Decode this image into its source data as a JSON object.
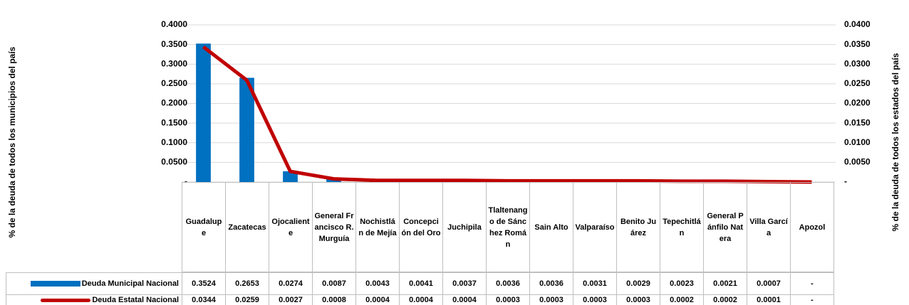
{
  "chart_data": {
    "type": "bar",
    "y_label": "% de la deuda  de todos los municipios del país",
    "y2_label": "% de la deuda de todos los estados del país",
    "categories": [
      "Guadalupe",
      "Zacatecas",
      "Ojocaliente",
      "General Francisco R. Murguía",
      "Nochistlán de Mejía",
      "Concepción del Oro",
      "Juchipila",
      "Tlaltenango de Sánchez Román",
      "Sain Alto",
      "Valparaíso",
      "Benito Juárez",
      "Tepechitlán",
      "General Pánfilo Natera",
      "Villa García",
      "Apozol"
    ],
    "series": [
      {
        "name": "Deuda Municipal Nacional",
        "type": "bar",
        "color": "#0070c0",
        "axis": "y",
        "values": [
          0.3524,
          0.2653,
          0.0274,
          0.0087,
          0.0043,
          0.0041,
          0.0037,
          0.0036,
          0.0036,
          0.0031,
          0.0029,
          0.0023,
          0.0021,
          0.0007,
          0
        ],
        "value_labels": [
          "0.3524",
          "0.2653",
          "0.0274",
          "0.0087",
          "0.0043",
          "0.0041",
          "0.0037",
          "0.0036",
          "0.0036",
          "0.0031",
          "0.0029",
          "0.0023",
          "0.0021",
          "0.0007",
          "-"
        ]
      },
      {
        "name": "Deuda Estatal Nacional",
        "type": "line",
        "color": "#c00000",
        "axis": "y2",
        "values": [
          0.0344,
          0.0259,
          0.0027,
          0.0008,
          0.0004,
          0.0004,
          0.0004,
          0.0003,
          0.0003,
          0.0003,
          0.0003,
          0.0002,
          0.0002,
          0.0001,
          0
        ],
        "value_labels": [
          "0.0344",
          "0.0259",
          "0.0027",
          "0.0008",
          "0.0004",
          "0.0004",
          "0.0004",
          "0.0003",
          "0.0003",
          "0.0003",
          "0.0003",
          "0.0002",
          "0.0002",
          "0.0001",
          "-"
        ]
      }
    ],
    "ylim": [
      0,
      0.4
    ],
    "yticks": [
      {
        "value": 0,
        "label": "-"
      },
      {
        "value": 0.05,
        "label": "0.0500"
      },
      {
        "value": 0.1,
        "label": "0.1000"
      },
      {
        "value": 0.15,
        "label": "0.1500"
      },
      {
        "value": 0.2,
        "label": "0.2000"
      },
      {
        "value": 0.25,
        "label": "0.2500"
      },
      {
        "value": 0.3,
        "label": "0.3000"
      },
      {
        "value": 0.35,
        "label": "0.3500"
      },
      {
        "value": 0.4,
        "label": "0.4000"
      }
    ],
    "y2lim": [
      0,
      0.04
    ],
    "y2ticks": [
      {
        "value": 0,
        "label": "-"
      },
      {
        "value": 0.005,
        "label": "0.0050"
      },
      {
        "value": 0.01,
        "label": "0.0100"
      },
      {
        "value": 0.015,
        "label": "0.0150"
      },
      {
        "value": 0.02,
        "label": "0.0200"
      },
      {
        "value": 0.025,
        "label": "0.0250"
      },
      {
        "value": 0.03,
        "label": "0.0300"
      },
      {
        "value": 0.035,
        "label": "0.0350"
      },
      {
        "value": 0.04,
        "label": "0.0400"
      }
    ],
    "grid": true
  }
}
